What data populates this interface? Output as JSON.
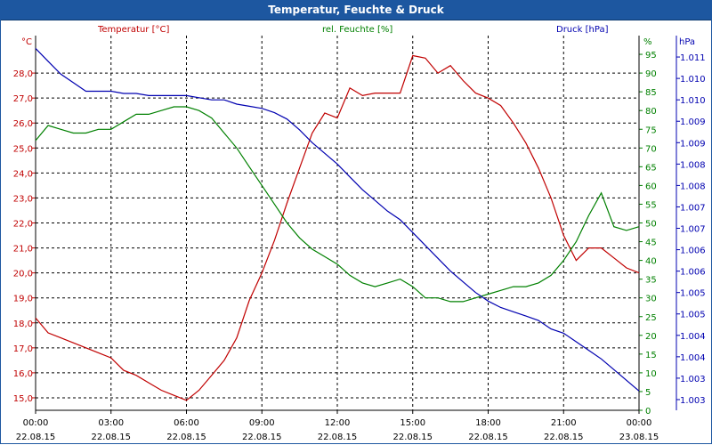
{
  "window": {
    "title": "Temperatur, Feuchte & Druck"
  },
  "colors": {
    "temperature": "#c00000",
    "humidity": "#008000",
    "pressure": "#0000b0",
    "axis": "#000000",
    "grid": "#000000"
  },
  "chart_data": {
    "type": "line",
    "title": "Temperatur, Feuchte & Druck",
    "grid": true,
    "x_ticks": [
      {
        "time": "00:00",
        "date": "22.08.15"
      },
      {
        "time": "03:00",
        "date": "22.08.15"
      },
      {
        "time": "06:00",
        "date": "22.08.15"
      },
      {
        "time": "09:00",
        "date": "22.08.15"
      },
      {
        "time": "12:00",
        "date": "22.08.15"
      },
      {
        "time": "15:00",
        "date": "22.08.15"
      },
      {
        "time": "18:00",
        "date": "22.08.15"
      },
      {
        "time": "21:00",
        "date": "22.08.15"
      },
      {
        "time": "00:00",
        "date": "23.08.15"
      }
    ],
    "axes": {
      "temperature": {
        "label": "Temperatur [°C]",
        "unit": "°C",
        "ylim": [
          14.5,
          29.5
        ],
        "ticks": [
          "15,0",
          "16,0",
          "17,0",
          "18,0",
          "19,0",
          "20,0",
          "21,0",
          "22,0",
          "23,0",
          "24,0",
          "25,0",
          "26,0",
          "27,0",
          "28,0"
        ]
      },
      "humidity": {
        "label": "rel. Feuchte [%]",
        "unit": "%",
        "ylim": [
          0,
          100
        ],
        "ticks": [
          "0",
          "5",
          "10",
          "15",
          "20",
          "25",
          "30",
          "35",
          "40",
          "45",
          "50",
          "55",
          "60",
          "65",
          "70",
          "75",
          "80",
          "85",
          "90",
          "95"
        ]
      },
      "pressure": {
        "label": "Druck [hPa]",
        "unit": "hPa",
        "ylim": [
          1002.75,
          1011.5
        ],
        "ticks": [
          {
            "v": 1003.0,
            "label": "1.003"
          },
          {
            "v": 1003.5,
            "label": "1.003"
          },
          {
            "v": 1004.0,
            "label": "1.004"
          },
          {
            "v": 1004.5,
            "label": "1.004"
          },
          {
            "v": 1005.0,
            "label": "1.005"
          },
          {
            "v": 1005.5,
            "label": "1.005"
          },
          {
            "v": 1006.0,
            "label": "1.006"
          },
          {
            "v": 1006.5,
            "label": "1.006"
          },
          {
            "v": 1007.0,
            "label": "1.007"
          },
          {
            "v": 1007.5,
            "label": "1.007"
          },
          {
            "v": 1008.0,
            "label": "1.008"
          },
          {
            "v": 1008.5,
            "label": "1.008"
          },
          {
            "v": 1009.0,
            "label": "1.009"
          },
          {
            "v": 1009.5,
            "label": "1.009"
          },
          {
            "v": 1010.0,
            "label": "1.010"
          },
          {
            "v": 1010.5,
            "label": "1.010"
          },
          {
            "v": 1011.0,
            "label": "1.011"
          }
        ]
      }
    },
    "series": [
      {
        "name": "Temperatur [°C]",
        "axis": "temperature",
        "x_hours": [
          0,
          0.5,
          1,
          1.5,
          2,
          2.5,
          3,
          3.5,
          4,
          4.5,
          5,
          5.5,
          6,
          6.5,
          7,
          7.5,
          8,
          8.5,
          9,
          9.5,
          10,
          10.5,
          11,
          11.5,
          12,
          12.5,
          13,
          13.5,
          14,
          14.5,
          15,
          15.5,
          16,
          16.5,
          17,
          17.5,
          18,
          18.5,
          19,
          19.5,
          20,
          20.5,
          21,
          21.5,
          22,
          22.5,
          23,
          23.5,
          24
        ],
        "values": [
          18.2,
          17.6,
          17.4,
          17.2,
          17.0,
          16.8,
          16.6,
          16.1,
          15.9,
          15.6,
          15.3,
          15.1,
          14.9,
          15.3,
          15.9,
          16.5,
          17.4,
          18.9,
          20.0,
          21.3,
          22.8,
          24.2,
          25.6,
          26.4,
          26.2,
          27.4,
          27.1,
          27.2,
          27.2,
          27.2,
          28.7,
          28.6,
          28.0,
          28.3,
          27.7,
          27.2,
          27.0,
          26.7,
          26.0,
          25.2,
          24.2,
          23.0,
          21.5,
          20.5,
          21.0,
          21.0,
          20.6,
          20.2,
          20.0
        ]
      },
      {
        "name": "rel. Feuchte [%]",
        "axis": "humidity",
        "x_hours": [
          0,
          0.5,
          1,
          1.5,
          2,
          2.5,
          3,
          3.5,
          4,
          4.5,
          5,
          5.5,
          6,
          6.5,
          7,
          7.5,
          8,
          8.5,
          9,
          9.5,
          10,
          10.5,
          11,
          11.5,
          12,
          12.5,
          13,
          13.5,
          14,
          14.5,
          15,
          15.5,
          16,
          16.5,
          17,
          17.5,
          18,
          18.5,
          19,
          19.5,
          20,
          20.5,
          21,
          21.5,
          22,
          22.5,
          23,
          23.5,
          24
        ],
        "values": [
          72,
          76,
          75,
          74,
          74,
          75,
          75,
          77,
          79,
          79,
          80,
          81,
          81,
          80,
          78,
          74,
          70,
          65,
          60,
          55,
          50,
          46,
          43,
          41,
          39,
          36,
          34,
          33,
          34,
          35,
          33,
          30,
          30,
          29,
          29,
          30,
          31,
          32,
          33,
          33,
          34,
          36,
          40,
          45,
          52,
          58,
          49,
          48,
          49
        ]
      },
      {
        "name": "Druck [hPa]",
        "axis": "pressure",
        "x_hours": [
          0,
          0.5,
          1,
          1.5,
          2,
          2.5,
          3,
          3.5,
          4,
          4.5,
          5,
          5.5,
          6,
          6.5,
          7,
          7.5,
          8,
          8.5,
          9,
          9.5,
          10,
          10.5,
          11,
          11.5,
          12,
          12.5,
          13,
          13.5,
          14,
          14.5,
          15,
          15.5,
          16,
          16.5,
          17,
          17.5,
          18,
          18.5,
          19,
          19.5,
          20,
          20.5,
          21,
          21.5,
          22,
          22.5,
          23,
          23.5,
          24
        ],
        "values": [
          1011.2,
          1010.9,
          1010.6,
          1010.4,
          1010.2,
          1010.2,
          1010.2,
          1010.15,
          1010.15,
          1010.1,
          1010.1,
          1010.1,
          1010.1,
          1010.05,
          1010.0,
          1010.0,
          1009.9,
          1009.85,
          1009.8,
          1009.7,
          1009.55,
          1009.3,
          1009.0,
          1008.75,
          1008.5,
          1008.2,
          1007.9,
          1007.65,
          1007.4,
          1007.2,
          1006.9,
          1006.6,
          1006.3,
          1006.0,
          1005.75,
          1005.5,
          1005.3,
          1005.15,
          1005.05,
          1004.95,
          1004.85,
          1004.65,
          1004.55,
          1004.35,
          1004.15,
          1003.95,
          1003.7,
          1003.45,
          1003.2
        ]
      }
    ]
  }
}
